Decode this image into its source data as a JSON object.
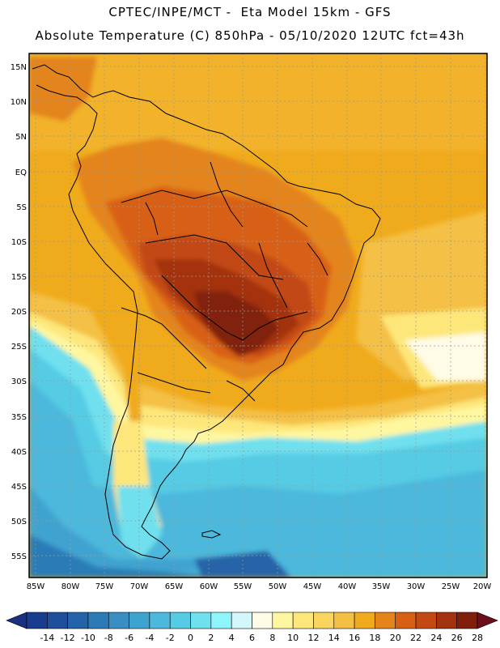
{
  "title_line1": "CPTEC/INPE/MCT -  Eta Model 15km - GFS",
  "title_line2": "Absolute Temperature (C) 850hPa - 05/10/2020 12UTC fct=43h",
  "lat_labels": [
    "15N",
    "10N",
    "5N",
    "EQ",
    "5S",
    "10S",
    "15S",
    "20S",
    "25S",
    "30S",
    "35S",
    "40S",
    "45S",
    "50S",
    "55S"
  ],
  "lon_labels": [
    "85W",
    "80W",
    "75W",
    "70W",
    "65W",
    "60W",
    "55W",
    "50W",
    "45W",
    "40W",
    "35W",
    "30W",
    "25W",
    "20W"
  ],
  "colorbar": {
    "ticks": [
      "-14",
      "-12",
      "-10",
      "-8",
      "-6",
      "-4",
      "-2",
      "0",
      "2",
      "4",
      "6",
      "8",
      "10",
      "12",
      "14",
      "16",
      "18",
      "20",
      "22",
      "24",
      "26",
      "28"
    ],
    "colors": [
      "#1a3c8e",
      "#1f4f9c",
      "#2563a8",
      "#2c7bb6",
      "#3a8fc2",
      "#3fa3cf",
      "#4cb8dc",
      "#55cbe4",
      "#6fe0ee",
      "#8ff5fb",
      "#d4f7fb",
      "#fffbe6",
      "#fff7a0",
      "#fde77a",
      "#f9d560",
      "#f4c044",
      "#f0ab1c",
      "#e4841a",
      "#d86014",
      "#c24a12",
      "#a3320f",
      "#80200c"
    ],
    "low_cap": "#1a3080",
    "high_cap": "#6b0f1a"
  }
}
